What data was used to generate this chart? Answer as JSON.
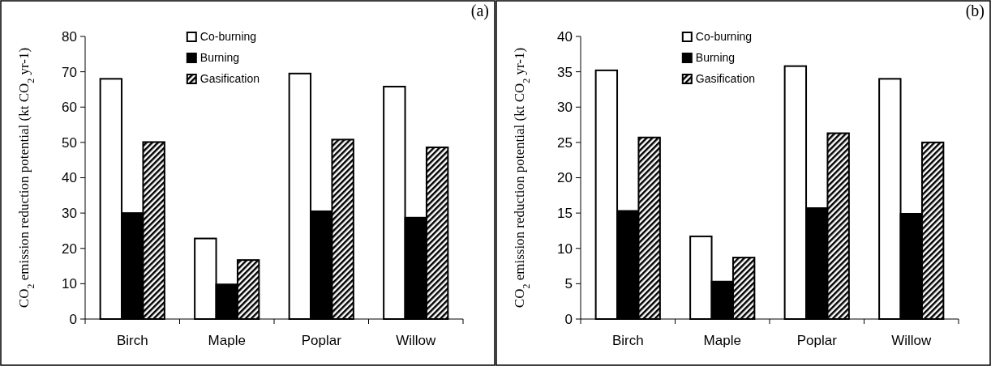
{
  "chart_data": [
    {
      "type": "bar",
      "title": "(a)",
      "ylabel": "CO$_{2}$ emission reduction potential (kt CO$_{2}$ yr-1)",
      "categories": [
        "Birch",
        "Maple",
        "Poplar",
        "Willow"
      ],
      "series": [
        {
          "name": "Co-burning",
          "color": "#ffffff",
          "values": [
            68,
            22.8,
            69.5,
            65.8
          ]
        },
        {
          "name": "Burning",
          "color": "#000000",
          "values": [
            30,
            9.8,
            30.5,
            28.7
          ]
        },
        {
          "name": "Gasification",
          "color": "#000000",
          "values": [
            50.1,
            16.7,
            50.8,
            48.6
          ]
        }
      ],
      "ylim": [
        0,
        80
      ],
      "yticks": [
        0,
        10,
        20,
        30,
        40,
        50,
        60,
        70,
        80
      ],
      "grid": false,
      "legend": "top"
    },
    {
      "type": "bar",
      "title": "(b)",
      "ylabel": "CO$_{2}$ emission reduction potential (kt CO$_{2}$ yr-1)",
      "categories": [
        "Birch",
        "Maple",
        "Poplar",
        "Willow"
      ],
      "series": [
        {
          "name": "Co-burning",
          "color": "#ffffff",
          "values": [
            35.2,
            11.7,
            35.8,
            34.0
          ]
        },
        {
          "name": "Burning",
          "color": "#000000",
          "values": [
            15.3,
            5.3,
            15.7,
            14.9
          ]
        },
        {
          "name": "Gasification",
          "color": "#000000",
          "values": [
            25.7,
            8.7,
            26.3,
            25.0
          ]
        }
      ],
      "ylim": [
        0,
        40
      ],
      "yticks": [
        0,
        5,
        10,
        15,
        20,
        25,
        30,
        35,
        40
      ],
      "grid": false,
      "legend": "top"
    }
  ]
}
